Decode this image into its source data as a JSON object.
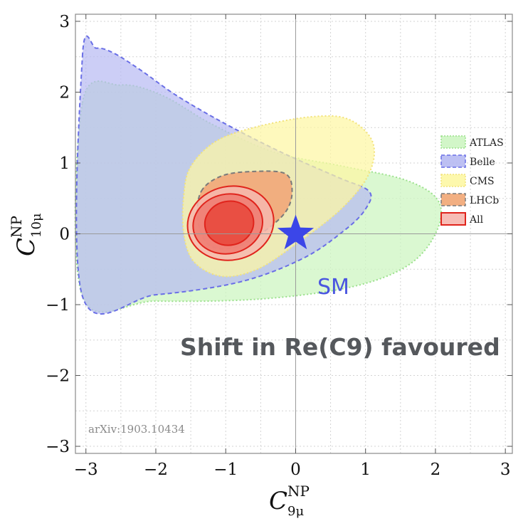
{
  "chart_data": {
    "type": "contour",
    "xlabel": "C",
    "xlabel_sup": "NP",
    "xlabel_sub": "9μ",
    "ylabel": "C",
    "ylabel_sup": "NP",
    "ylabel_sub": "10μ",
    "xlim": [
      -3.15,
      3.1
    ],
    "ylim": [
      -3.1,
      3.1
    ],
    "xticks": [
      -3,
      -2,
      -1,
      0,
      1,
      2,
      3
    ],
    "yticks": [
      -3,
      -2,
      -1,
      0,
      1,
      2,
      3
    ],
    "xtick_labels": [
      "−3",
      "−2",
      "−1",
      "0",
      "1",
      "2",
      "3"
    ],
    "ytick_labels": [
      "−3",
      "−2",
      "−1",
      "0",
      "1",
      "2",
      "3"
    ],
    "grid": true,
    "legend_position": "right",
    "series": [
      {
        "name": "ATLAS",
        "color": "#cdf5c2",
        "edge": "#9be08c",
        "opacity": 0.75,
        "outline": [
          [
            -3.05,
            1.85
          ],
          [
            -2.5,
            2.1
          ],
          [
            -1.9,
            1.95
          ],
          [
            -1.2,
            1.55
          ],
          [
            -0.3,
            1.15
          ],
          [
            0.7,
            0.95
          ],
          [
            1.6,
            0.75
          ],
          [
            2.05,
            0.45
          ],
          [
            2.0,
            0.0
          ],
          [
            1.6,
            -0.45
          ],
          [
            0.8,
            -0.75
          ],
          [
            -0.5,
            -0.92
          ],
          [
            -2.0,
            -0.95
          ],
          [
            -3.05,
            -0.88
          ]
        ]
      },
      {
        "name": "Belle",
        "color": "#b6b9f2",
        "edge": "#6a6fe6",
        "opacity": 0.7,
        "outline": [
          [
            -3.05,
            2.5
          ],
          [
            -2.85,
            2.62
          ],
          [
            -2.6,
            2.55
          ],
          [
            -2.2,
            2.3
          ],
          [
            -1.7,
            1.95
          ],
          [
            -1.0,
            1.55
          ],
          [
            -0.2,
            1.15
          ],
          [
            0.6,
            0.8
          ],
          [
            1.05,
            0.6
          ],
          [
            1.0,
            0.35
          ],
          [
            0.7,
            0.05
          ],
          [
            0.1,
            -0.35
          ],
          [
            -0.8,
            -0.68
          ],
          [
            -2.0,
            -0.86
          ],
          [
            -3.05,
            -0.88
          ]
        ]
      },
      {
        "name": "CMS",
        "color": "#fdf7a4",
        "edge": "#f2e27a",
        "opacity": 0.72,
        "outline": [
          [
            -1.6,
            0.55
          ],
          [
            -1.5,
            0.95
          ],
          [
            -1.15,
            1.3
          ],
          [
            -0.6,
            1.5
          ],
          [
            0.2,
            1.65
          ],
          [
            0.75,
            1.62
          ],
          [
            1.1,
            1.3
          ],
          [
            1.05,
            0.85
          ],
          [
            0.65,
            0.35
          ],
          [
            0.0,
            -0.15
          ],
          [
            -0.55,
            -0.5
          ],
          [
            -1.05,
            -0.6
          ],
          [
            -1.45,
            -0.4
          ],
          [
            -1.6,
            0.0
          ]
        ]
      },
      {
        "name": "LHCb",
        "color": "#f1ab7b",
        "edge": "#7a7a7a",
        "opacity": 0.95,
        "outline": [
          [
            -1.35,
            0.6
          ],
          [
            -1.05,
            0.82
          ],
          [
            -0.6,
            0.88
          ],
          [
            -0.15,
            0.85
          ],
          [
            -0.05,
            0.6
          ],
          [
            -0.15,
            0.3
          ],
          [
            -0.5,
            0.0
          ],
          [
            -0.9,
            -0.2
          ],
          [
            -1.25,
            -0.15
          ],
          [
            -1.4,
            0.2
          ]
        ]
      },
      {
        "name": "All",
        "color": "#f6b5ad",
        "edge": "#e0241c",
        "opacity": 0.85,
        "contours": [
          {
            "level": 3,
            "fill": "#f6b7ae",
            "cx": -0.93,
            "cy": 0.15,
            "rx": 0.62,
            "ry": 0.52
          },
          {
            "level": 2,
            "fill": "#ee7a70",
            "cx": -0.97,
            "cy": 0.14,
            "rx": 0.5,
            "ry": 0.42
          },
          {
            "level": 1,
            "fill": "#e8463a",
            "cx": -0.95,
            "cy": 0.15,
            "rx": 0.35,
            "ry": 0.31
          }
        ]
      }
    ],
    "sm_point": {
      "x": 0,
      "y": 0,
      "label": "SM",
      "color": "#3b46e8"
    },
    "annotations": {
      "shift": "Shift in Re(C9) favoured",
      "arxiv": "arXiv:1903.10434"
    }
  }
}
